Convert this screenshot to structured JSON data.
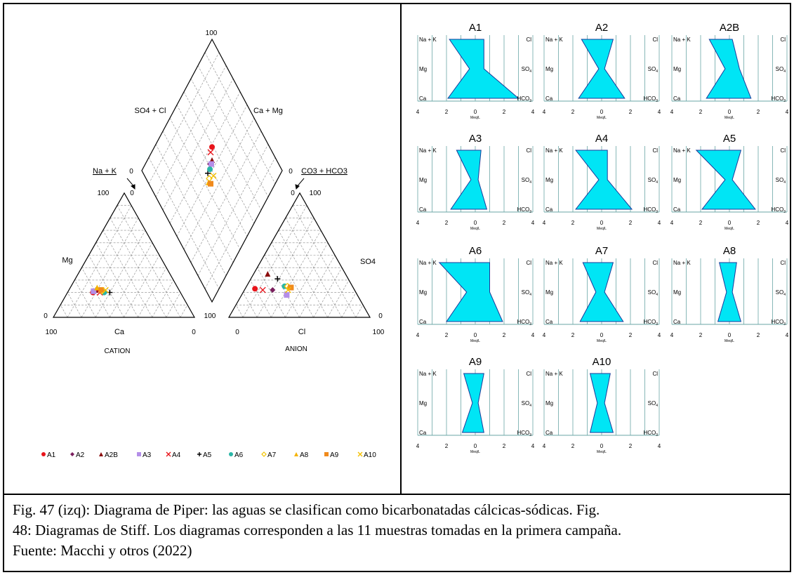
{
  "caption": {
    "line1": "Fig. 47 (izq): Diagrama de Piper: las aguas se clasifican como bicarbonatadas cálcicas-sódicas. Fig.",
    "line2": "48: Diagramas de Stiff. Los diagramas corresponden a las 11 muestras tomadas en la primera campaña.",
    "line3": "Fuente: Macchi y otros (2022)"
  },
  "chart_data": [
    {
      "type": "scatter",
      "subtype": "piper",
      "labels": {
        "diamond_top": "100",
        "diamond_left_side": "SO4 + Cl",
        "diamond_right_side": "Ca + Mg",
        "diamond_left_zero": "0",
        "diamond_right_zero": "0",
        "nak": "Na + K",
        "co3hco3": "CO3 + HCO3",
        "cat_apex_100": "100",
        "cat_apex_0": "0",
        "an_apex_0": "0",
        "an_apex_100": "100",
        "mg": "Mg",
        "so4": "SO4",
        "cat_left_zero": "0",
        "cat_right_100": "100",
        "an_left_100": "100",
        "an_right_zero": "0",
        "cat_bl": "100",
        "ca": "Ca",
        "cat_br": "0",
        "an_bl": "0",
        "cl": "Cl",
        "an_br": "100",
        "cation": "CATION",
        "anion": "ANION"
      },
      "legend_placement": "bottom",
      "samples": [
        {
          "name": "A1",
          "color": "#e8141b",
          "marker": "circle",
          "cation": {
            "Ca": 62,
            "Mg": 20,
            "NaK": 18
          },
          "anion": {
            "HCO3": 70,
            "SO4": 23,
            "Cl": 7
          },
          "diamond": {
            "x": 41,
            "y": 59
          }
        },
        {
          "name": "A2",
          "color": "#7b1f5e",
          "marker": "diamond",
          "cation": {
            "Ca": 58,
            "Mg": 22,
            "NaK": 20
          },
          "anion": {
            "HCO3": 58,
            "SO4": 22,
            "Cl": 20
          },
          "diamond": {
            "x": 46,
            "y": 51
          }
        },
        {
          "name": "A2B",
          "color": "#8b0c0c",
          "marker": "triangle",
          "cation": {
            "Ca": 59,
            "Mg": 22,
            "NaK": 19
          },
          "anion": {
            "HCO3": 55,
            "SO4": 35,
            "Cl": 10
          },
          "diamond": {
            "x": 46,
            "y": 54
          }
        },
        {
          "name": "A3",
          "color": "#b48ee8",
          "marker": "square",
          "cation": {
            "Ca": 61,
            "Mg": 21,
            "NaK": 18
          },
          "anion": {
            "HCO3": 50,
            "SO4": 18,
            "Cl": 32
          },
          "diamond": {
            "x": 47,
            "y": 52
          }
        },
        {
          "name": "A4",
          "color": "#e8141b",
          "marker": "x",
          "cation": {
            "Ca": 57,
            "Mg": 20,
            "NaK": 23
          },
          "anion": {
            "HCO3": 65,
            "SO4": 22,
            "Cl": 13
          },
          "diamond": {
            "x": 42,
            "y": 56
          }
        },
        {
          "name": "A5",
          "color": "#000000",
          "marker": "plus",
          "cation": {
            "Ca": 50,
            "Mg": 20,
            "NaK": 30
          },
          "anion": {
            "HCO3": 50,
            "SO4": 31,
            "Cl": 19
          },
          "diamond": {
            "x": 48,
            "y": 46
          }
        },
        {
          "name": "A6",
          "color": "#2ab6a7",
          "marker": "circle",
          "cation": {
            "Ca": 54,
            "Mg": 20,
            "NaK": 26
          },
          "anion": {
            "HCO3": 48,
            "SO4": 25,
            "Cl": 27
          },
          "diamond": {
            "x": 48,
            "y": 49
          }
        },
        {
          "name": "A7",
          "color": "#f2c400",
          "marker": "open-diamond",
          "cation": {
            "Ca": 55,
            "Mg": 21,
            "NaK": 24
          },
          "anion": {
            "HCO3": 46,
            "SO4": 25,
            "Cl": 29
          },
          "diamond": {
            "x": 51,
            "y": 45
          }
        },
        {
          "name": "A8",
          "color": "#f5b400",
          "marker": "triangle",
          "cation": {
            "Ca": 57,
            "Mg": 24,
            "NaK": 19
          },
          "anion": {
            "HCO3": 45,
            "SO4": 25,
            "Cl": 30
          },
          "diamond": {
            "x": 52,
            "y": 43
          }
        },
        {
          "name": "A9",
          "color": "#f08a1c",
          "marker": "square",
          "cation": {
            "Ca": 55,
            "Mg": 22,
            "NaK": 23
          },
          "anion": {
            "HCO3": 44,
            "SO4": 24,
            "Cl": 32
          },
          "diamond": {
            "x": 54,
            "y": 44
          }
        },
        {
          "name": "A10",
          "color": "#f5c000",
          "marker": "x",
          "cation": {
            "Ca": 52,
            "Mg": 22,
            "NaK": 26
          },
          "anion": {
            "HCO3": 47,
            "SO4": 22,
            "Cl": 31
          },
          "diamond": {
            "x": 53,
            "y": 49
          }
        }
      ]
    },
    {
      "type": "area",
      "subtype": "stiff",
      "xlabel": "Meq/L",
      "xlim": [
        -4,
        4
      ],
      "ticks": [
        "4",
        "2",
        "0",
        "2",
        "4"
      ],
      "left_ions": [
        "Na + K",
        "Mg",
        "Ca"
      ],
      "right_ions": [
        "Cl",
        "SO",
        "HCO"
      ],
      "ion_subscripts": [
        "",
        "4",
        "3"
      ],
      "fill_color": "#00e5f5",
      "diagrams": [
        {
          "name": "A1",
          "left": [
            1.8,
            0.4,
            1.9
          ],
          "right": [
            0.6,
            0.6,
            3.0
          ]
        },
        {
          "name": "A2",
          "left": [
            1.4,
            0.2,
            1.6
          ],
          "right": [
            0.8,
            0.2,
            1.6
          ]
        },
        {
          "name": "A2B",
          "left": [
            1.4,
            0.3,
            1.6
          ],
          "right": [
            0.2,
            0.7,
            1.5
          ]
        },
        {
          "name": "A3",
          "left": [
            1.3,
            0.3,
            1.7
          ],
          "right": [
            0.4,
            0.2,
            0.8
          ]
        },
        {
          "name": "A4",
          "left": [
            1.8,
            0.2,
            1.8
          ],
          "right": [
            0.4,
            0.4,
            2.1
          ]
        },
        {
          "name": "A5",
          "left": [
            2.3,
            0.3,
            1.9
          ],
          "right": [
            0.8,
            0.2,
            1.8
          ]
        },
        {
          "name": "A6",
          "left": [
            2.5,
            0.6,
            2.0
          ],
          "right": [
            1.0,
            1.0,
            1.9
          ]
        },
        {
          "name": "A7",
          "left": [
            1.3,
            0.4,
            1.5
          ],
          "right": [
            0.8,
            0.2,
            1.5
          ]
        },
        {
          "name": "A8",
          "left": [
            0.7,
            0.2,
            0.8
          ],
          "right": [
            0.5,
            0.2,
            0.8
          ]
        },
        {
          "name": "A9",
          "left": [
            0.8,
            0.2,
            0.9
          ],
          "right": [
            0.6,
            0.2,
            0.6
          ]
        },
        {
          "name": "A10",
          "left": [
            0.8,
            0.3,
            0.8
          ],
          "right": [
            0.6,
            0.2,
            0.8
          ]
        }
      ]
    }
  ]
}
